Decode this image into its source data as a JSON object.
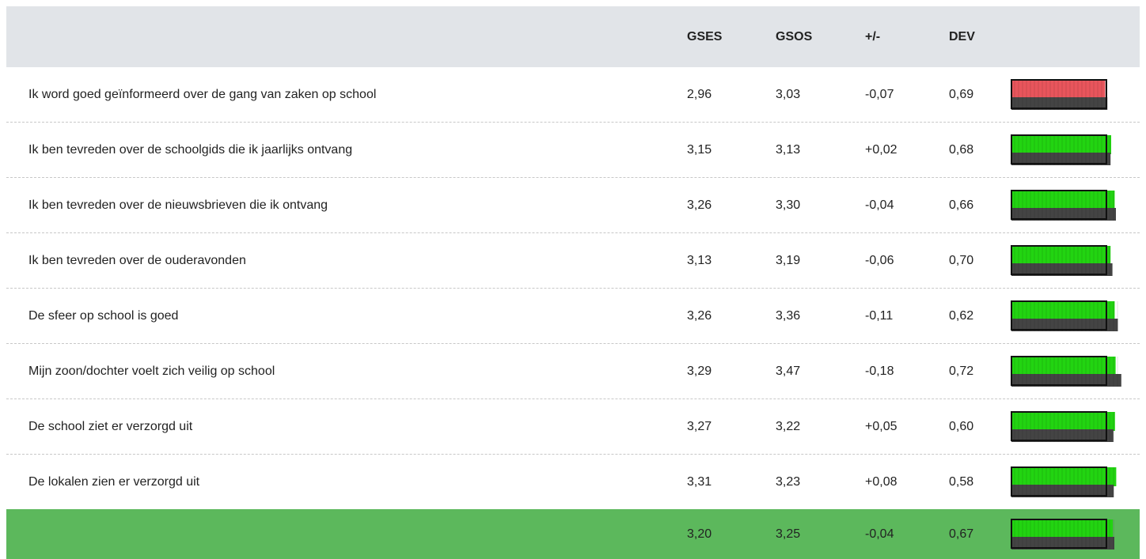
{
  "table": {
    "header": [
      "GSES",
      "GSOS",
      "+/-",
      "DEV"
    ],
    "rows": [
      {
        "label": "Ik word goed geïnformeerd over de gang van zaken op school",
        "gses": "2,96",
        "gsos": "3,03",
        "diff": "-0,07",
        "dev": "0,69"
      },
      {
        "label": "Ik ben tevreden over de schoolgids die ik jaarlijks ontvang",
        "gses": "3,15",
        "gsos": "3,13",
        "diff": "+0,02",
        "dev": "0,68"
      },
      {
        "label": "Ik ben tevreden over de nieuwsbrieven die ik ontvang",
        "gses": "3,26",
        "gsos": "3,30",
        "diff": "-0,04",
        "dev": "0,66"
      },
      {
        "label": "Ik ben tevreden over de ouderavonden",
        "gses": "3,13",
        "gsos": "3,19",
        "diff": "-0,06",
        "dev": "0,70"
      },
      {
        "label": "De sfeer op school is goed",
        "gses": "3,26",
        "gsos": "3,36",
        "diff": "-0,11",
        "dev": "0,62"
      },
      {
        "label": "Mijn zoon/dochter voelt zich veilig op school",
        "gses": "3,29",
        "gsos": "3,47",
        "diff": "-0,18",
        "dev": "0,72"
      },
      {
        "label": "De school ziet er verzorgd uit",
        "gses": "3,27",
        "gsos": "3,22",
        "diff": "+0,05",
        "dev": "0,60"
      },
      {
        "label": "De lokalen zien er verzorgd uit",
        "gses": "3,31",
        "gsos": "3,23",
        "diff": "+0,08",
        "dev": "0,58"
      }
    ],
    "total": {
      "gses": "3,20",
      "gsos": "3,25",
      "diff": "-0,04",
      "dev": "0,67"
    },
    "bars": {
      "xlim": [
        0,
        4
      ],
      "threshold": 3,
      "color_above": "#22d411",
      "color_below": "#e8555c",
      "color_base": "#444444"
    }
  }
}
